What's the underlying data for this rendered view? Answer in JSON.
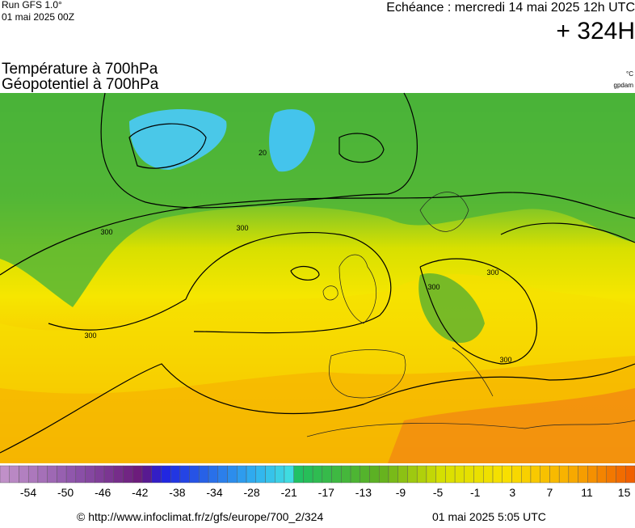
{
  "header": {
    "run": "Run GFS 1.0°",
    "run_date": "01 mai 2025 00Z",
    "valid_time": "Echéance : mercredi 14 mai 2025 12h UTC",
    "lead": "+ 324H"
  },
  "map": {
    "title_line1": "Température à 700hPa",
    "title_line2": "Géopotentiel à 700hPa",
    "unit_temp": "°C",
    "unit_geo": "gpdam",
    "contour_labels": [
      "300",
      "300",
      "300",
      "300",
      "300",
      "300",
      "20"
    ]
  },
  "colorbar": {
    "labels": [
      "-54",
      "-50",
      "-46",
      "-42",
      "-38",
      "-34",
      "-28",
      "-21",
      "-17",
      "-13",
      "-9",
      "-5",
      "-1",
      "3",
      "7",
      "11",
      "15"
    ]
  },
  "footer": {
    "url": "© http://www.infoclimat.fr/z/gfs/europe/700_2/324",
    "generated": "01 mai 2025  5:05 UTC"
  }
}
